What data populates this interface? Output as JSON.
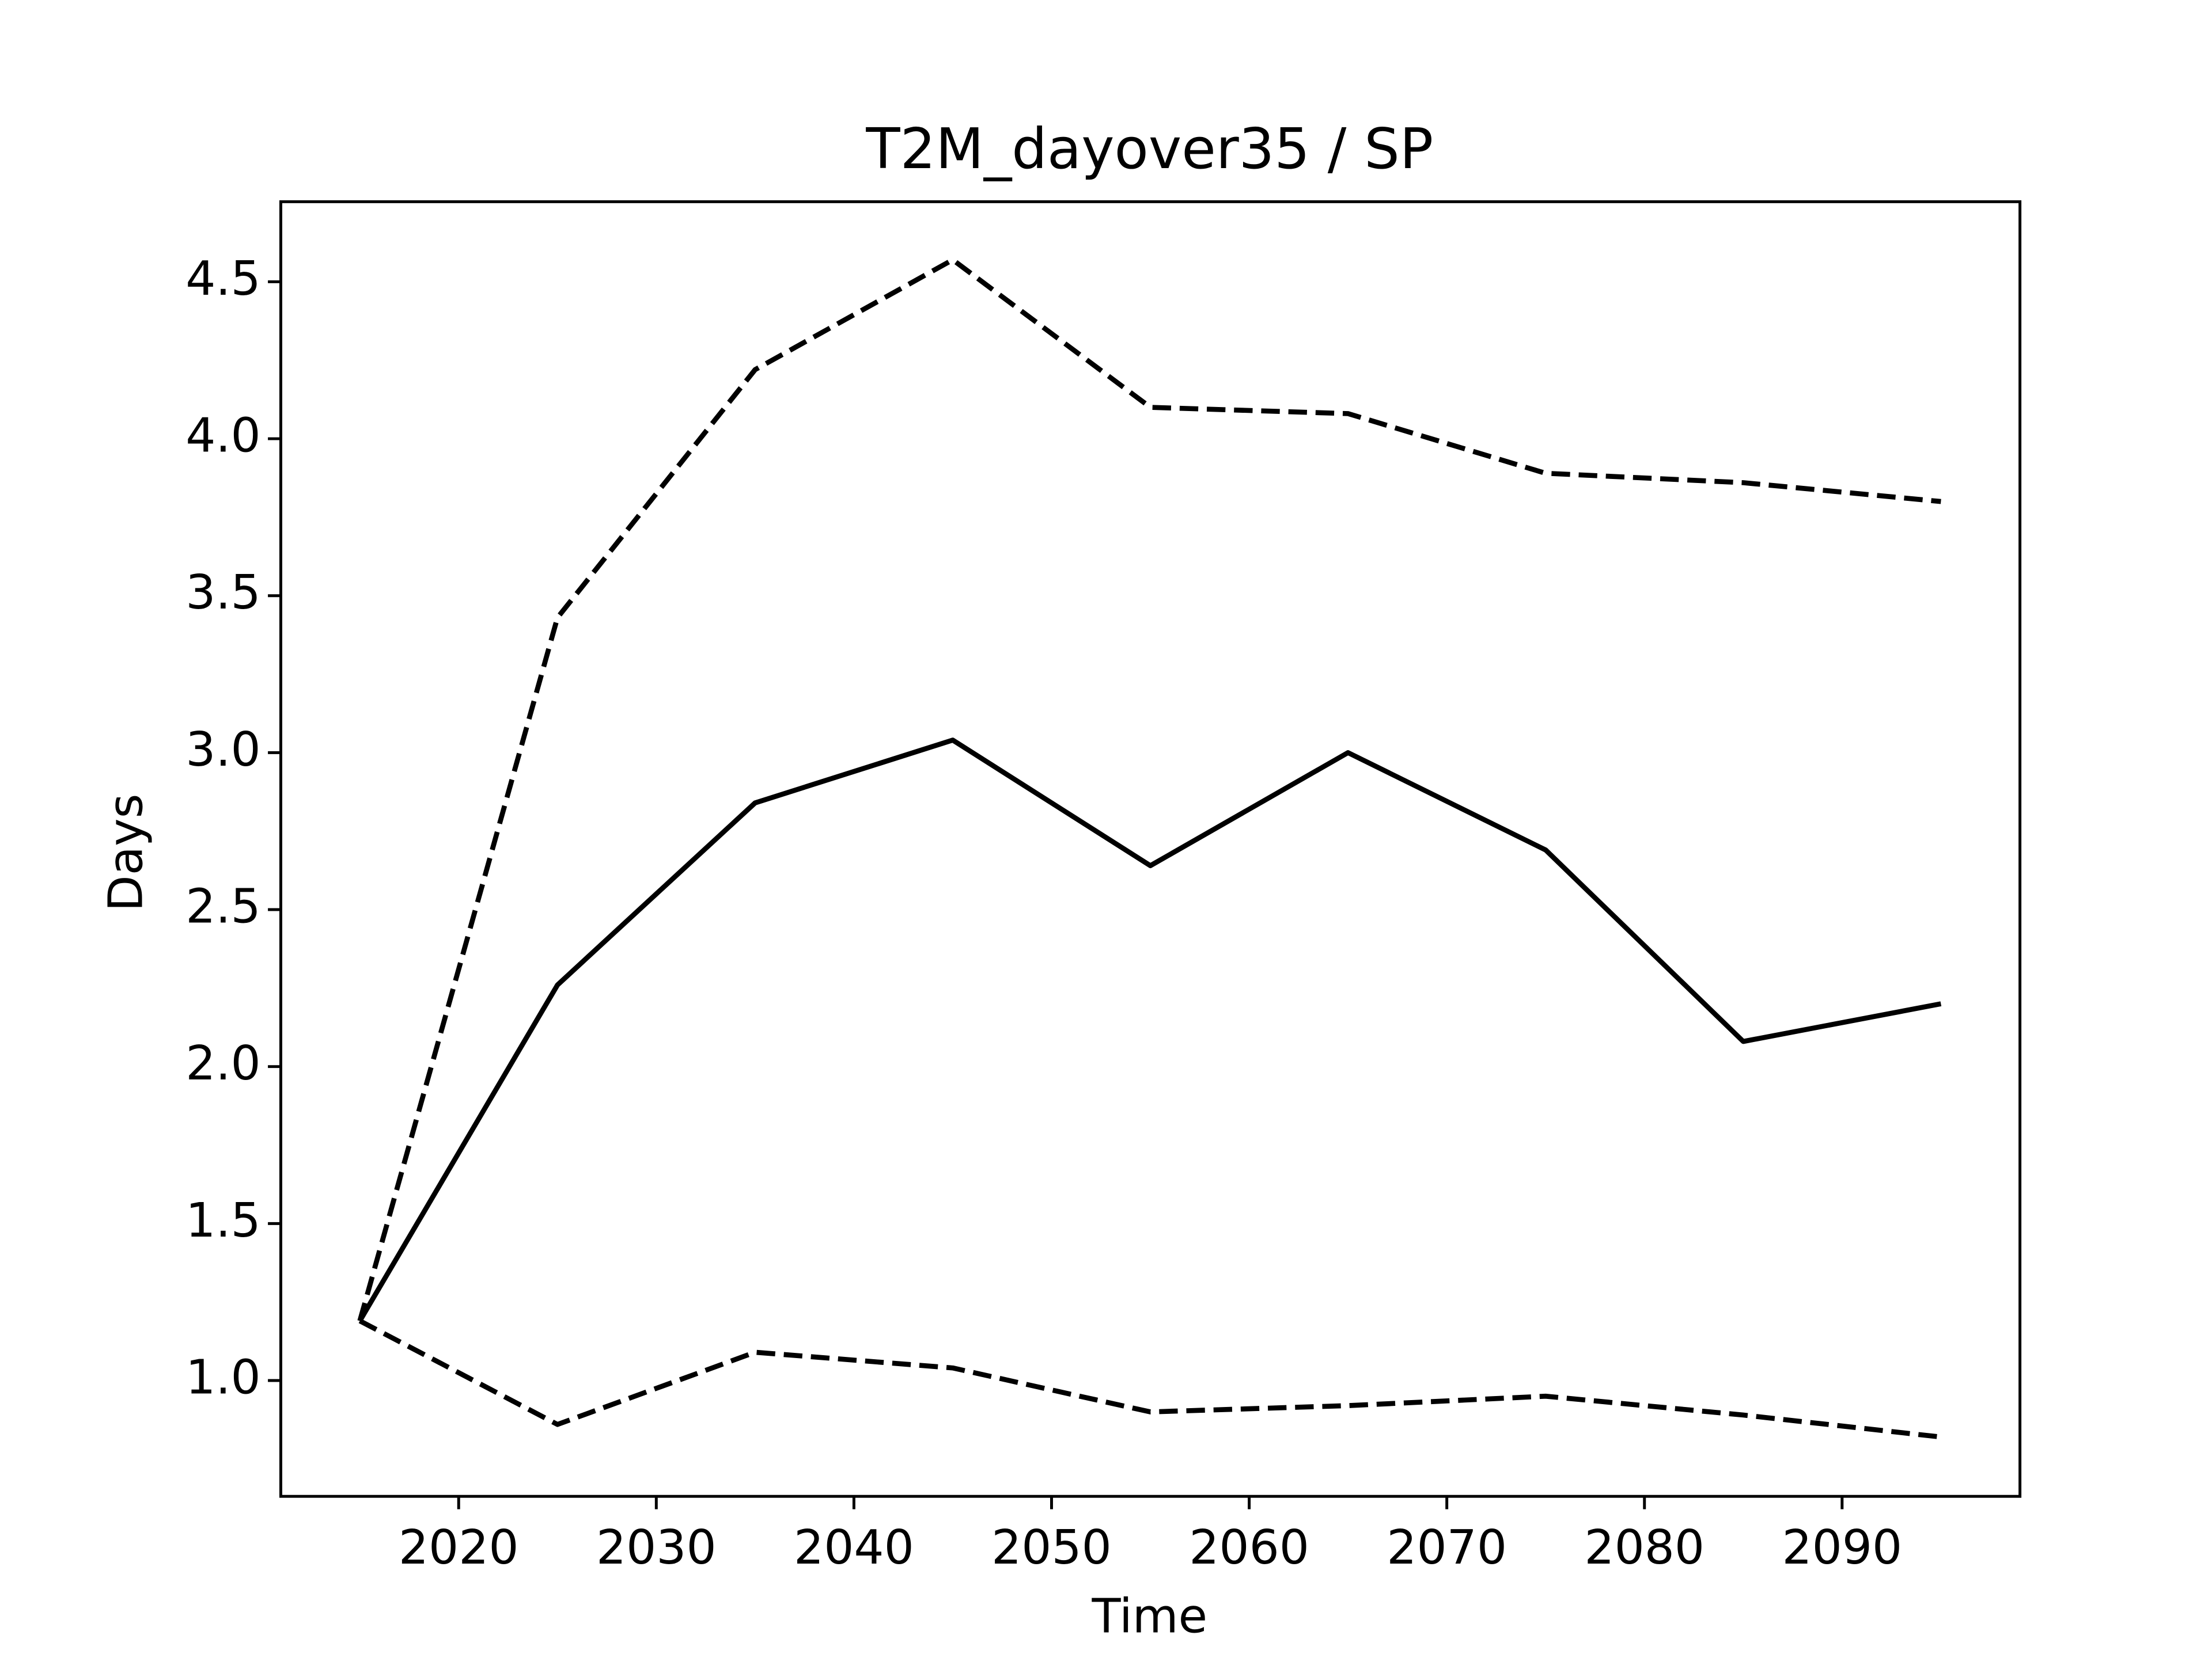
{
  "chart_data": {
    "type": "line",
    "title": "T2M_dayover35 / SP",
    "x_label": "Time",
    "y_label": "Days",
    "x": [
      2015,
      2025,
      2035,
      2045,
      2055,
      2065,
      2075,
      2085,
      2095
    ],
    "series": [
      {
        "color": "#000000",
        "dash": "solid",
        "values": [
          1.19,
          2.26,
          2.84,
          3.04,
          2.64,
          3.0,
          2.69,
          2.08,
          2.2
        ]
      },
      {
        "color": "#000000",
        "dash": "dashed",
        "values": [
          1.19,
          3.43,
          4.22,
          4.57,
          4.1,
          4.08,
          3.89,
          3.86,
          3.8
        ]
      },
      {
        "color": "#000000",
        "dash": "dashed",
        "values": [
          1.19,
          0.86,
          1.09,
          1.04,
          0.9,
          0.92,
          0.95,
          0.89,
          0.82
        ]
      }
    ],
    "xlim": [
      2011,
      2099
    ],
    "ylim": [
      0.631,
      4.755
    ],
    "xticks": [
      2020,
      2030,
      2040,
      2050,
      2060,
      2070,
      2080,
      2090
    ],
    "yticks": [
      {
        "value": 1,
        "label": "1.0"
      },
      {
        "value": 1.5,
        "label": "1.5"
      },
      {
        "value": 2,
        "label": "2.0"
      },
      {
        "value": 2.5,
        "label": "2.5"
      },
      {
        "value": 3,
        "label": "3.0"
      },
      {
        "value": 3.5,
        "label": "3.5"
      },
      {
        "value": 4,
        "label": "4.0"
      },
      {
        "value": 4.5,
        "label": "4.5"
      }
    ],
    "grid": false
  }
}
